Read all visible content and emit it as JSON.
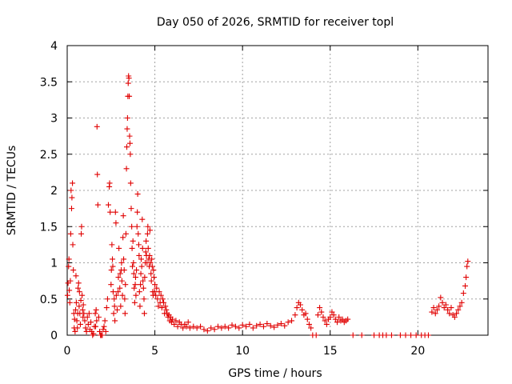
{
  "chart_data": {
    "type": "scatter",
    "title": "Day 050 of 2026, SRMTID for receiver topl",
    "xlabel": "GPS time / hours",
    "ylabel": "SRMTID / TECUs",
    "xlim": [
      0,
      24
    ],
    "ylim": [
      0,
      4
    ],
    "xticks": [
      0,
      5,
      10,
      15,
      20
    ],
    "yticks": [
      0,
      0.5,
      1,
      1.5,
      2,
      2.5,
      3,
      3.5,
      4
    ],
    "xtick_labels": [
      "0",
      "5",
      "10",
      "15",
      "20"
    ],
    "ytick_labels": [
      "0",
      "0.5",
      "1",
      "1.5",
      "2",
      "2.5",
      "3",
      "3.5",
      "4"
    ],
    "grid": true,
    "marker": "+",
    "color": "#e00000",
    "series": [
      {
        "name": "SRMTID",
        "points": [
          [
            0.02,
            0.55
          ],
          [
            0.05,
            0.72
          ],
          [
            0.08,
            0.95
          ],
          [
            0.1,
            1.05
          ],
          [
            0.12,
            0.62
          ],
          [
            0.15,
            0.45
          ],
          [
            0.18,
            0.75
          ],
          [
            0.2,
            1.4
          ],
          [
            0.22,
            2.0
          ],
          [
            0.25,
            1.75
          ],
          [
            0.27,
            1.9
          ],
          [
            0.3,
            2.1
          ],
          [
            0.32,
            1.25
          ],
          [
            0.35,
            0.9
          ],
          [
            0.38,
            0.3
          ],
          [
            0.4,
            0.1
          ],
          [
            0.42,
            0.22
          ],
          [
            0.45,
            0.05
          ],
          [
            0.48,
            0.35
          ],
          [
            0.5,
            0.82
          ],
          [
            0.52,
            0.45
          ],
          [
            0.55,
            0.2
          ],
          [
            0.58,
            0.1
          ],
          [
            0.6,
            0.3
          ],
          [
            0.62,
            0.65
          ],
          [
            0.65,
            0.72
          ],
          [
            0.68,
            0.4
          ],
          [
            0.7,
            0.6
          ],
          [
            0.72,
            0.3
          ],
          [
            0.75,
            0.15
          ],
          [
            0.78,
            0.48
          ],
          [
            0.8,
            1.4
          ],
          [
            0.82,
            1.5
          ],
          [
            0.85,
            0.55
          ],
          [
            0.88,
            0.35
          ],
          [
            0.9,
            0.25
          ],
          [
            0.92,
            0.42
          ],
          [
            0.95,
            0.3
          ],
          [
            1.0,
            0.2
          ],
          [
            1.05,
            0.1
          ],
          [
            1.1,
            0.05
          ],
          [
            1.15,
            0.25
          ],
          [
            1.2,
            0.15
          ],
          [
            1.25,
            0.3
          ],
          [
            1.3,
            0.08
          ],
          [
            1.35,
            0.18
          ],
          [
            1.4,
            0.05
          ],
          [
            1.45,
            0.0
          ],
          [
            1.5,
            0.02
          ],
          [
            1.55,
            0.12
          ],
          [
            1.6,
            0.3
          ],
          [
            1.62,
            0.12
          ],
          [
            1.65,
            0.35
          ],
          [
            1.68,
            0.2
          ],
          [
            1.7,
            2.88
          ],
          [
            1.72,
            2.22
          ],
          [
            1.75,
            1.8
          ],
          [
            1.8,
            0.25
          ],
          [
            1.85,
            0.05
          ],
          [
            1.9,
            0.0
          ],
          [
            1.95,
            0.0
          ],
          [
            2.0,
            0.0
          ],
          [
            2.05,
            0.08
          ],
          [
            2.1,
            0.12
          ],
          [
            2.15,
            0.2
          ],
          [
            2.2,
            0.05
          ],
          [
            2.25,
            0.38
          ],
          [
            2.3,
            0.5
          ],
          [
            2.35,
            1.8
          ],
          [
            2.4,
            2.05
          ],
          [
            2.42,
            2.1
          ],
          [
            2.45,
            1.7
          ],
          [
            2.5,
            0.7
          ],
          [
            2.52,
            0.9
          ],
          [
            2.55,
            1.25
          ],
          [
            2.58,
            1.05
          ],
          [
            2.6,
            0.95
          ],
          [
            2.62,
            0.6
          ],
          [
            2.65,
            0.3
          ],
          [
            2.68,
            0.5
          ],
          [
            2.7,
            0.4
          ],
          [
            2.72,
            0.2
          ],
          [
            2.75,
            1.7
          ],
          [
            2.78,
            1.55
          ],
          [
            2.8,
            0.55
          ],
          [
            2.85,
            0.35
          ],
          [
            2.9,
            0.6
          ],
          [
            2.92,
            0.8
          ],
          [
            2.95,
            1.2
          ],
          [
            3.0,
            0.65
          ],
          [
            3.02,
            0.85
          ],
          [
            3.05,
            0.4
          ],
          [
            3.08,
            0.9
          ],
          [
            3.1,
            1.0
          ],
          [
            3.12,
            0.75
          ],
          [
            3.15,
            0.55
          ],
          [
            3.18,
            1.35
          ],
          [
            3.2,
            1.65
          ],
          [
            3.22,
            1.05
          ],
          [
            3.25,
            0.9
          ],
          [
            3.28,
            0.5
          ],
          [
            3.3,
            0.3
          ],
          [
            3.32,
            0.7
          ],
          [
            3.35,
            1.4
          ],
          [
            3.38,
            2.3
          ],
          [
            3.4,
            2.6
          ],
          [
            3.42,
            2.85
          ],
          [
            3.44,
            3.0
          ],
          [
            3.46,
            3.3
          ],
          [
            3.48,
            3.48
          ],
          [
            3.5,
            3.58
          ],
          [
            3.52,
            3.55
          ],
          [
            3.54,
            3.3
          ],
          [
            3.56,
            2.75
          ],
          [
            3.58,
            2.65
          ],
          [
            3.6,
            2.5
          ],
          [
            3.62,
            2.1
          ],
          [
            3.65,
            1.75
          ],
          [
            3.68,
            1.5
          ],
          [
            3.7,
            1.2
          ],
          [
            3.72,
            0.95
          ],
          [
            3.75,
            1.3
          ],
          [
            3.78,
            1.0
          ],
          [
            3.8,
            0.85
          ],
          [
            3.82,
            0.65
          ],
          [
            3.85,
            0.45
          ],
          [
            3.88,
            0.7
          ],
          [
            3.9,
            0.8
          ],
          [
            3.92,
            0.55
          ],
          [
            3.95,
            0.9
          ],
          [
            3.98,
            1.5
          ],
          [
            4.0,
            1.7
          ],
          [
            4.02,
            1.95
          ],
          [
            4.05,
            1.4
          ],
          [
            4.08,
            1.25
          ],
          [
            4.1,
            1.1
          ],
          [
            4.12,
            0.6
          ],
          [
            4.15,
            0.4
          ],
          [
            4.18,
            0.7
          ],
          [
            4.2,
            0.85
          ],
          [
            4.22,
            1.05
          ],
          [
            4.25,
            0.95
          ],
          [
            4.28,
            1.6
          ],
          [
            4.3,
            1.2
          ],
          [
            4.32,
            0.75
          ],
          [
            4.35,
            0.65
          ],
          [
            4.38,
            0.5
          ],
          [
            4.4,
            0.3
          ],
          [
            4.42,
            0.8
          ],
          [
            4.45,
            1.0
          ],
          [
            4.48,
            1.15
          ],
          [
            4.5,
            1.3
          ],
          [
            4.52,
            1.1
          ],
          [
            4.55,
            1.0
          ],
          [
            4.58,
            1.4
          ],
          [
            4.6,
            1.5
          ],
          [
            4.62,
            1.2
          ],
          [
            4.65,
            1.05
          ],
          [
            4.68,
            0.95
          ],
          [
            4.7,
            1.1
          ],
          [
            4.72,
            1.45
          ],
          [
            4.75,
            1.0
          ],
          [
            4.78,
            0.85
          ],
          [
            4.8,
            0.75
          ],
          [
            4.82,
            1.05
          ],
          [
            4.85,
            0.95
          ],
          [
            4.88,
            0.6
          ],
          [
            4.9,
            0.55
          ],
          [
            4.92,
            0.9
          ],
          [
            4.95,
            0.8
          ],
          [
            4.98,
            0.6
          ],
          [
            5.0,
            0.7
          ],
          [
            5.05,
            0.55
          ],
          [
            5.1,
            0.65
          ],
          [
            5.15,
            0.5
          ],
          [
            5.2,
            0.4
          ],
          [
            5.25,
            0.6
          ],
          [
            5.3,
            0.45
          ],
          [
            5.35,
            0.55
          ],
          [
            5.4,
            0.38
          ],
          [
            5.45,
            0.5
          ],
          [
            5.5,
            0.45
          ],
          [
            5.55,
            0.3
          ],
          [
            5.6,
            0.4
          ],
          [
            5.65,
            0.35
          ],
          [
            5.7,
            0.3
          ],
          [
            5.75,
            0.25
          ],
          [
            5.8,
            0.28
          ],
          [
            5.85,
            0.2
          ],
          [
            5.9,
            0.25
          ],
          [
            5.95,
            0.18
          ],
          [
            6.0,
            0.22
          ],
          [
            6.1,
            0.15
          ],
          [
            6.2,
            0.2
          ],
          [
            6.3,
            0.12
          ],
          [
            6.4,
            0.18
          ],
          [
            6.5,
            0.15
          ],
          [
            6.6,
            0.1
          ],
          [
            6.7,
            0.15
          ],
          [
            6.8,
            0.12
          ],
          [
            6.9,
            0.18
          ],
          [
            7.0,
            0.1
          ],
          [
            7.2,
            0.12
          ],
          [
            7.4,
            0.1
          ],
          [
            7.6,
            0.12
          ],
          [
            7.8,
            0.08
          ],
          [
            8.0,
            0.06
          ],
          [
            8.2,
            0.1
          ],
          [
            8.4,
            0.08
          ],
          [
            8.6,
            0.12
          ],
          [
            8.8,
            0.1
          ],
          [
            9.0,
            0.12
          ],
          [
            9.2,
            0.1
          ],
          [
            9.4,
            0.14
          ],
          [
            9.6,
            0.12
          ],
          [
            9.8,
            0.1
          ],
          [
            10.0,
            0.14
          ],
          [
            10.2,
            0.12
          ],
          [
            10.4,
            0.15
          ],
          [
            10.6,
            0.1
          ],
          [
            10.8,
            0.13
          ],
          [
            11.0,
            0.15
          ],
          [
            11.2,
            0.12
          ],
          [
            11.4,
            0.16
          ],
          [
            11.6,
            0.13
          ],
          [
            11.8,
            0.11
          ],
          [
            12.0,
            0.14
          ],
          [
            12.2,
            0.16
          ],
          [
            12.4,
            0.13
          ],
          [
            12.6,
            0.18
          ],
          [
            12.8,
            0.2
          ],
          [
            13.0,
            0.28
          ],
          [
            13.1,
            0.38
          ],
          [
            13.2,
            0.45
          ],
          [
            13.3,
            0.42
          ],
          [
            13.4,
            0.35
          ],
          [
            13.5,
            0.28
          ],
          [
            13.6,
            0.3
          ],
          [
            13.7,
            0.22
          ],
          [
            13.8,
            0.15
          ],
          [
            13.9,
            0.1
          ],
          [
            14.0,
            0.0
          ],
          [
            14.2,
            0.0
          ],
          [
            14.3,
            0.28
          ],
          [
            14.4,
            0.38
          ],
          [
            14.5,
            0.32
          ],
          [
            14.6,
            0.25
          ],
          [
            14.7,
            0.2
          ],
          [
            14.8,
            0.15
          ],
          [
            14.9,
            0.22
          ],
          [
            15.0,
            0.25
          ],
          [
            15.1,
            0.32
          ],
          [
            15.2,
            0.28
          ],
          [
            15.3,
            0.22
          ],
          [
            15.4,
            0.18
          ],
          [
            15.5,
            0.25
          ],
          [
            15.6,
            0.2
          ],
          [
            15.7,
            0.22
          ],
          [
            15.8,
            0.18
          ],
          [
            15.9,
            0.2
          ],
          [
            16.0,
            0.22
          ],
          [
            16.3,
            0.0
          ],
          [
            16.8,
            0.0
          ],
          [
            17.5,
            0.0
          ],
          [
            17.8,
            0.0
          ],
          [
            18.0,
            0.0
          ],
          [
            18.2,
            0.0
          ],
          [
            18.5,
            0.0
          ],
          [
            19.0,
            0.0
          ],
          [
            19.3,
            0.0
          ],
          [
            19.6,
            0.0
          ],
          [
            19.9,
            0.0
          ],
          [
            20.2,
            0.0
          ],
          [
            20.4,
            0.0
          ],
          [
            20.6,
            0.0
          ],
          [
            20.8,
            0.32
          ],
          [
            20.9,
            0.38
          ],
          [
            21.0,
            0.3
          ],
          [
            21.1,
            0.35
          ],
          [
            21.2,
            0.4
          ],
          [
            21.3,
            0.52
          ],
          [
            21.4,
            0.45
          ],
          [
            21.5,
            0.38
          ],
          [
            21.6,
            0.42
          ],
          [
            21.7,
            0.35
          ],
          [
            21.8,
            0.3
          ],
          [
            21.9,
            0.38
          ],
          [
            22.0,
            0.28
          ],
          [
            22.1,
            0.25
          ],
          [
            22.2,
            0.3
          ],
          [
            22.3,
            0.35
          ],
          [
            22.4,
            0.4
          ],
          [
            22.5,
            0.45
          ],
          [
            22.6,
            0.58
          ],
          [
            22.7,
            0.68
          ],
          [
            22.75,
            0.8
          ],
          [
            22.8,
            0.95
          ],
          [
            22.85,
            1.02
          ]
        ]
      }
    ]
  }
}
